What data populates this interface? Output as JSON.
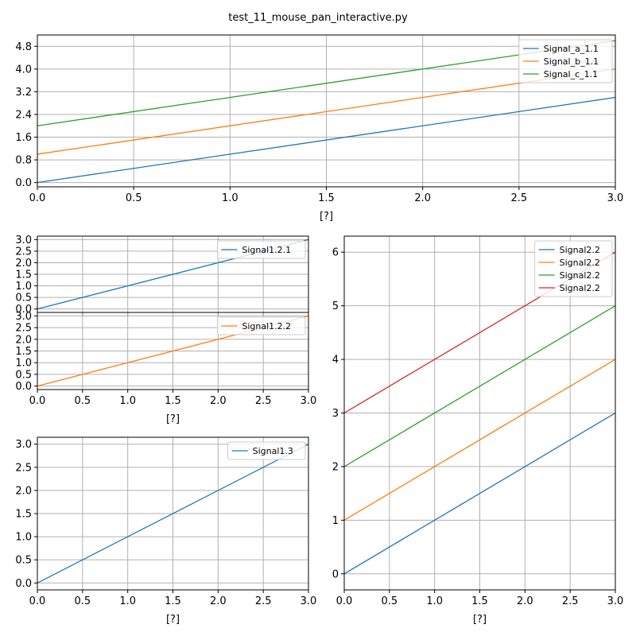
{
  "figure": {
    "title": "test_11_mouse_pan_interactive.py"
  },
  "chart_data": [
    {
      "id": "p11",
      "type": "line",
      "title": "",
      "xlabel": "[?]",
      "ylabel": "",
      "xlim": [
        0,
        3.0
      ],
      "ylim": [
        -0.15,
        5.2
      ],
      "xticks": [
        0,
        0.5,
        1.0,
        1.5,
        2.0,
        2.5,
        3.0
      ],
      "xtick_labels": [
        "0.0",
        "0.5",
        "1.0",
        "1.5",
        "2.0",
        "2.5",
        "3.0"
      ],
      "yticks": [
        0,
        0.8,
        1.6,
        2.4,
        3.2,
        4.0,
        4.8
      ],
      "ytick_labels": [
        "0.0",
        "0.8",
        "1.6",
        "2.4",
        "3.2",
        "4.0",
        "4.8"
      ],
      "grid": true,
      "legend": "top-right",
      "show_xticklabels": true,
      "series": [
        {
          "name": "Signal_a_1.1",
          "color": "#1f77b4",
          "x": [
            0,
            3
          ],
          "y": [
            0,
            3
          ]
        },
        {
          "name": "Signal_b_1.1",
          "color": "#ff7f0e",
          "x": [
            0,
            3
          ],
          "y": [
            1,
            4
          ]
        },
        {
          "name": "Signal_c_1.1",
          "color": "#2ca02c",
          "x": [
            0,
            3
          ],
          "y": [
            2,
            5
          ]
        }
      ]
    },
    {
      "id": "p121",
      "type": "line",
      "title": "",
      "xlabel": "",
      "ylabel": "",
      "xlim": [
        0,
        3.0
      ],
      "ylim": [
        -0.15,
        3.15
      ],
      "xticks": [
        0,
        0.5,
        1.0,
        1.5,
        2.0,
        2.5,
        3.0
      ],
      "xtick_labels": [],
      "yticks": [
        0,
        0.5,
        1.0,
        1.5,
        2.0,
        2.5,
        3.0
      ],
      "ytick_labels": [
        "0.0",
        "0.5",
        "1.0",
        "1.5",
        "2.0",
        "2.5",
        "3.0"
      ],
      "grid": true,
      "legend": "top-right",
      "show_xticklabels": false,
      "series": [
        {
          "name": "Signal1.2.1",
          "color": "#1f77b4",
          "x": [
            0,
            3
          ],
          "y": [
            0,
            3
          ]
        }
      ]
    },
    {
      "id": "p122",
      "type": "line",
      "title": "",
      "xlabel": "[?]",
      "ylabel": "",
      "xlim": [
        0,
        3.0
      ],
      "ylim": [
        -0.15,
        3.15
      ],
      "xticks": [
        0,
        0.5,
        1.0,
        1.5,
        2.0,
        2.5,
        3.0
      ],
      "xtick_labels": [
        "0.0",
        "0.5",
        "1.0",
        "1.5",
        "2.0",
        "2.5",
        "3.0"
      ],
      "yticks": [
        0,
        0.5,
        1.0,
        1.5,
        2.0,
        2.5,
        3.0
      ],
      "ytick_labels": [
        "0.0",
        "0.5",
        "1.0",
        "1.5",
        "2.0",
        "2.5",
        "3.0"
      ],
      "grid": true,
      "legend": "top-right",
      "show_xticklabels": true,
      "series": [
        {
          "name": "Signal1.2.2",
          "color": "#ff7f0e",
          "x": [
            0,
            3
          ],
          "y": [
            0,
            3
          ]
        }
      ]
    },
    {
      "id": "p13",
      "type": "line",
      "title": "",
      "xlabel": "[?]",
      "ylabel": "",
      "xlim": [
        0,
        3.0
      ],
      "ylim": [
        -0.15,
        3.15
      ],
      "xticks": [
        0,
        0.5,
        1.0,
        1.5,
        2.0,
        2.5,
        3.0
      ],
      "xtick_labels": [
        "0.0",
        "0.5",
        "1.0",
        "1.5",
        "2.0",
        "2.5",
        "3.0"
      ],
      "yticks": [
        0,
        0.5,
        1.0,
        1.5,
        2.0,
        2.5,
        3.0
      ],
      "ytick_labels": [
        "0.0",
        "0.5",
        "1.0",
        "1.5",
        "2.0",
        "2.5",
        "3.0"
      ],
      "grid": true,
      "legend": "top-right",
      "show_xticklabels": true,
      "series": [
        {
          "name": "Signal1.3",
          "color": "#1f77b4",
          "x": [
            0,
            3
          ],
          "y": [
            0,
            3
          ]
        }
      ]
    },
    {
      "id": "p22",
      "type": "line",
      "title": "",
      "xlabel": "[?]",
      "ylabel": "",
      "xlim": [
        0,
        3.0
      ],
      "ylim": [
        -0.3,
        6.3
      ],
      "xticks": [
        0,
        0.5,
        1.0,
        1.5,
        2.0,
        2.5,
        3.0
      ],
      "xtick_labels": [
        "0.0",
        "0.5",
        "1.0",
        "1.5",
        "2.0",
        "2.5",
        "3.0"
      ],
      "yticks": [
        0,
        1,
        2,
        3,
        4,
        5,
        6
      ],
      "ytick_labels": [
        "0",
        "1",
        "2",
        "3",
        "4",
        "5",
        "6"
      ],
      "grid": true,
      "legend": "top-right",
      "show_xticklabels": true,
      "series": [
        {
          "name": "Signal2.2",
          "color": "#1f77b4",
          "x": [
            0,
            3
          ],
          "y": [
            0,
            3
          ]
        },
        {
          "name": "Signal2.2",
          "color": "#ff7f0e",
          "x": [
            0,
            3
          ],
          "y": [
            1,
            4
          ]
        },
        {
          "name": "Signal2.2",
          "color": "#2ca02c",
          "x": [
            0,
            3
          ],
          "y": [
            2,
            5
          ]
        },
        {
          "name": "Signal2.2",
          "color": "#d62728",
          "x": [
            0,
            3
          ],
          "y": [
            3,
            6
          ]
        }
      ]
    }
  ]
}
